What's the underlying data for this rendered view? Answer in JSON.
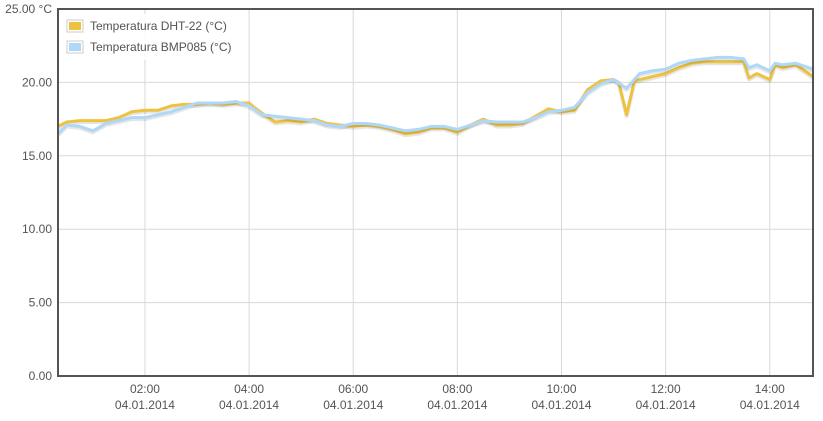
{
  "chart_data": {
    "type": "line",
    "ylabel": "°C",
    "ylim": [
      0,
      25
    ],
    "yticks": [
      0,
      5,
      10,
      15,
      20,
      25
    ],
    "ytick_labels": [
      "0.00",
      "5.00",
      "10.00",
      "15.00",
      "20.00",
      "25.00 °C"
    ],
    "xlim": [
      0.33,
      14.83
    ],
    "xticks": [
      {
        "x": 2,
        "time": "02:00",
        "date": "04.01.2014"
      },
      {
        "x": 4,
        "time": "04:00",
        "date": "04.01.2014"
      },
      {
        "x": 6,
        "time": "06:00",
        "date": "04.01.2014"
      },
      {
        "x": 8,
        "time": "08:00",
        "date": "04.01.2014"
      },
      {
        "x": 10,
        "time": "10:00",
        "date": "04.01.2014"
      },
      {
        "x": 12,
        "time": "12:00",
        "date": "04.01.2014"
      },
      {
        "x": 14,
        "time": "14:00",
        "date": "04.01.2014"
      }
    ],
    "grid": true,
    "legend_position": "top-left",
    "series": [
      {
        "name": "Temperatura DHT-22 (°C)",
        "color": "#edc240",
        "points": [
          [
            0.33,
            17.0
          ],
          [
            0.5,
            17.3
          ],
          [
            0.75,
            17.4
          ],
          [
            1.0,
            17.4
          ],
          [
            1.25,
            17.4
          ],
          [
            1.5,
            17.6
          ],
          [
            1.75,
            18.0
          ],
          [
            2.0,
            18.1
          ],
          [
            2.25,
            18.1
          ],
          [
            2.5,
            18.4
          ],
          [
            2.75,
            18.5
          ],
          [
            3.0,
            18.5
          ],
          [
            3.25,
            18.6
          ],
          [
            3.5,
            18.5
          ],
          [
            3.75,
            18.6
          ],
          [
            4.0,
            18.6
          ],
          [
            4.1,
            18.3
          ],
          [
            4.25,
            17.9
          ],
          [
            4.5,
            17.3
          ],
          [
            4.75,
            17.4
          ],
          [
            5.0,
            17.3
          ],
          [
            5.25,
            17.5
          ],
          [
            5.5,
            17.2
          ],
          [
            5.75,
            17.1
          ],
          [
            6.0,
            17.0
          ],
          [
            6.25,
            17.1
          ],
          [
            6.5,
            17.0
          ],
          [
            6.75,
            16.8
          ],
          [
            7.0,
            16.5
          ],
          [
            7.25,
            16.6
          ],
          [
            7.5,
            16.9
          ],
          [
            7.75,
            16.9
          ],
          [
            8.0,
            16.6
          ],
          [
            8.25,
            17.1
          ],
          [
            8.5,
            17.5
          ],
          [
            8.75,
            17.1
          ],
          [
            9.0,
            17.1
          ],
          [
            9.25,
            17.2
          ],
          [
            9.5,
            17.7
          ],
          [
            9.75,
            18.2
          ],
          [
            10.0,
            18.0
          ],
          [
            10.25,
            18.1
          ],
          [
            10.5,
            19.5
          ],
          [
            10.75,
            20.1
          ],
          [
            11.0,
            20.2
          ],
          [
            11.1,
            20.0
          ],
          [
            11.25,
            17.8
          ],
          [
            11.4,
            20.1
          ],
          [
            11.75,
            20.4
          ],
          [
            12.0,
            20.6
          ],
          [
            12.25,
            21.0
          ],
          [
            12.5,
            21.3
          ],
          [
            12.75,
            21.4
          ],
          [
            13.0,
            21.4
          ],
          [
            13.25,
            21.4
          ],
          [
            13.5,
            21.4
          ],
          [
            13.6,
            20.3
          ],
          [
            13.75,
            20.6
          ],
          [
            14.0,
            20.2
          ],
          [
            14.1,
            21.2
          ],
          [
            14.25,
            21.0
          ],
          [
            14.5,
            21.2
          ],
          [
            14.75,
            20.6
          ],
          [
            14.83,
            20.4
          ]
        ]
      },
      {
        "name": "Temperatura BMP085 (°C)",
        "color": "#afd8f8",
        "points": [
          [
            0.33,
            16.5
          ],
          [
            0.5,
            17.1
          ],
          [
            0.75,
            17.0
          ],
          [
            1.0,
            16.7
          ],
          [
            1.25,
            17.2
          ],
          [
            1.5,
            17.4
          ],
          [
            1.75,
            17.6
          ],
          [
            2.0,
            17.6
          ],
          [
            2.25,
            17.8
          ],
          [
            2.5,
            18.0
          ],
          [
            2.75,
            18.3
          ],
          [
            3.0,
            18.6
          ],
          [
            3.25,
            18.6
          ],
          [
            3.5,
            18.6
          ],
          [
            3.75,
            18.7
          ],
          [
            4.0,
            18.4
          ],
          [
            4.25,
            17.8
          ],
          [
            4.5,
            17.7
          ],
          [
            4.75,
            17.6
          ],
          [
            5.0,
            17.5
          ],
          [
            5.25,
            17.4
          ],
          [
            5.5,
            17.1
          ],
          [
            5.75,
            17.0
          ],
          [
            6.0,
            17.2
          ],
          [
            6.25,
            17.2
          ],
          [
            6.5,
            17.1
          ],
          [
            6.75,
            16.9
          ],
          [
            7.0,
            16.7
          ],
          [
            7.25,
            16.8
          ],
          [
            7.5,
            17.0
          ],
          [
            7.75,
            17.0
          ],
          [
            8.0,
            16.8
          ],
          [
            8.25,
            17.1
          ],
          [
            8.5,
            17.4
          ],
          [
            8.75,
            17.3
          ],
          [
            9.0,
            17.3
          ],
          [
            9.25,
            17.3
          ],
          [
            9.5,
            17.6
          ],
          [
            9.75,
            18.0
          ],
          [
            10.0,
            18.1
          ],
          [
            10.25,
            18.3
          ],
          [
            10.5,
            19.3
          ],
          [
            10.75,
            19.9
          ],
          [
            11.0,
            20.2
          ],
          [
            11.25,
            19.6
          ],
          [
            11.5,
            20.6
          ],
          [
            11.75,
            20.8
          ],
          [
            12.0,
            20.9
          ],
          [
            12.25,
            21.3
          ],
          [
            12.5,
            21.5
          ],
          [
            12.75,
            21.6
          ],
          [
            13.0,
            21.7
          ],
          [
            13.25,
            21.7
          ],
          [
            13.5,
            21.6
          ],
          [
            13.6,
            21.0
          ],
          [
            13.75,
            21.2
          ],
          [
            14.0,
            20.8
          ],
          [
            14.1,
            21.3
          ],
          [
            14.25,
            21.2
          ],
          [
            14.5,
            21.3
          ],
          [
            14.75,
            21.0
          ],
          [
            14.83,
            20.9
          ]
        ]
      }
    ]
  }
}
